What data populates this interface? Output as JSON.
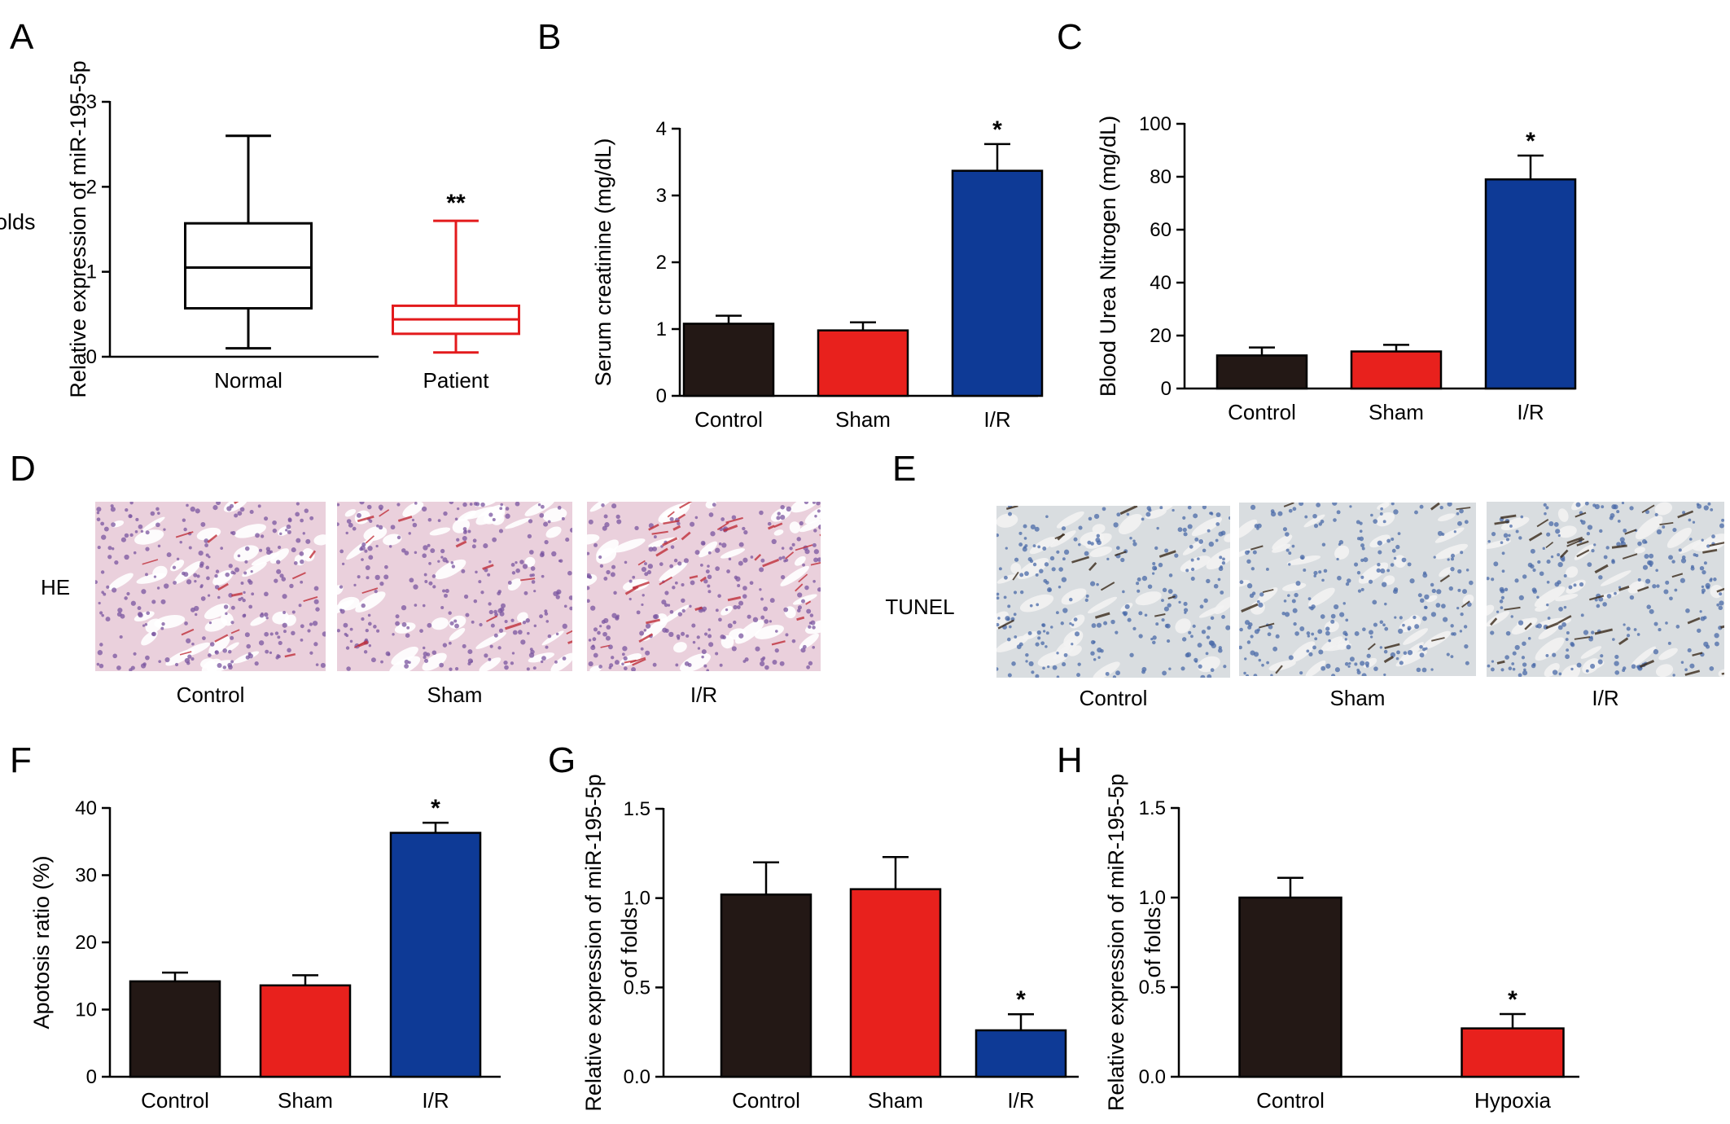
{
  "panel_labels": [
    "A",
    "B",
    "C",
    "D",
    "E",
    "F",
    "G",
    "H"
  ],
  "chart_data": [
    {
      "panel": "A",
      "type": "box",
      "ylabel": [
        "Relative expression of miR-195-5p",
        "of folds"
      ],
      "ylim": [
        0,
        3
      ],
      "yticks": [
        "0",
        "1",
        "2",
        "3"
      ],
      "categories": [
        "Normal",
        "Patient"
      ],
      "boxes": [
        {
          "min": 0.1,
          "q1": 0.57,
          "median": 1.05,
          "q3": 1.57,
          "max": 2.6,
          "color": "#000000"
        },
        {
          "min": 0.05,
          "q1": 0.27,
          "median": 0.44,
          "q3": 0.6,
          "max": 1.6,
          "color": "#e31a1c"
        }
      ],
      "annotations": [
        "",
        "**"
      ]
    },
    {
      "panel": "B",
      "type": "bar",
      "ylabel": [
        "Serum creatinine (mg/dL)"
      ],
      "ylim": [
        0,
        4
      ],
      "yticks": [
        "0",
        "1",
        "2",
        "3",
        "4"
      ],
      "categories": [
        "Control",
        "Sham",
        "I/R"
      ],
      "values": [
        1.08,
        0.98,
        3.37
      ],
      "errors": [
        0.12,
        0.12,
        0.4
      ],
      "colors": [
        "#231815",
        "#e8211d",
        "#0e3a96"
      ],
      "annotations": [
        "",
        "",
        "*"
      ]
    },
    {
      "panel": "C",
      "type": "bar",
      "ylabel": [
        "Blood Urea Nitrogen  (mg/dL)"
      ],
      "ylim": [
        0,
        100
      ],
      "yticks": [
        "0",
        "20",
        "40",
        "60",
        "80",
        "100"
      ],
      "categories": [
        "Control",
        "Sham",
        "I/R"
      ],
      "values": [
        12.5,
        14,
        79
      ],
      "errors": [
        3,
        2.5,
        9
      ],
      "colors": [
        "#231815",
        "#e8211d",
        "#0e3a96"
      ],
      "annotations": [
        "",
        "",
        "*"
      ]
    },
    {
      "panel": "F",
      "type": "bar",
      "ylabel": [
        "Apotosis ratio (%)"
      ],
      "ylim": [
        0,
        40
      ],
      "yticks": [
        "0",
        "10",
        "20",
        "30",
        "40"
      ],
      "categories": [
        "Control",
        "Sham",
        "I/R"
      ],
      "values": [
        14.2,
        13.6,
        36.3
      ],
      "errors": [
        1.3,
        1.5,
        1.5
      ],
      "colors": [
        "#231815",
        "#e8211d",
        "#0e3a96"
      ],
      "annotations": [
        "",
        "",
        "*"
      ]
    },
    {
      "panel": "G",
      "type": "bar",
      "ylabel": [
        "Relative expression of miR-195-5p",
        "of folds"
      ],
      "ylim": [
        0,
        1.5
      ],
      "yticks": [
        "0.0",
        "0.5",
        "1.0",
        "1.5"
      ],
      "categories": [
        "Control",
        "Sham",
        "I/R"
      ],
      "values": [
        1.02,
        1.05,
        0.26
      ],
      "errors": [
        0.18,
        0.18,
        0.09
      ],
      "colors": [
        "#231815",
        "#e8211d",
        "#0e3a96"
      ],
      "annotations": [
        "",
        "",
        "*"
      ]
    },
    {
      "panel": "H",
      "type": "bar",
      "ylabel": [
        "Relative expression of miR-195-5p",
        "of folds"
      ],
      "ylim": [
        0,
        1.5
      ],
      "yticks": [
        "0.0",
        "0.5",
        "1.0",
        "1.5"
      ],
      "categories": [
        "Control",
        "Hypoxia"
      ],
      "values": [
        1.0,
        0.27
      ],
      "errors": [
        0.11,
        0.08
      ],
      "colors": [
        "#231815",
        "#e8211d"
      ],
      "annotations": [
        "",
        "*"
      ]
    }
  ],
  "micrographs": [
    {
      "panel": "D",
      "row_label": "HE",
      "captions": [
        "Control",
        "Sham",
        "I/R"
      ],
      "background": "#ead0dc",
      "lumen_color": "#ffffff",
      "nucleus_color": "#7a55a0",
      "blood_color": "#c0303a"
    },
    {
      "panel": "E",
      "row_label": "TUNEL",
      "captions": [
        "Control",
        "Sham",
        "I/R"
      ],
      "background": "#d9dde0",
      "lumen_color": "#f2f2f2",
      "nucleus_color": "#4a6aa8",
      "blood_color": "#3a2a1a"
    }
  ]
}
